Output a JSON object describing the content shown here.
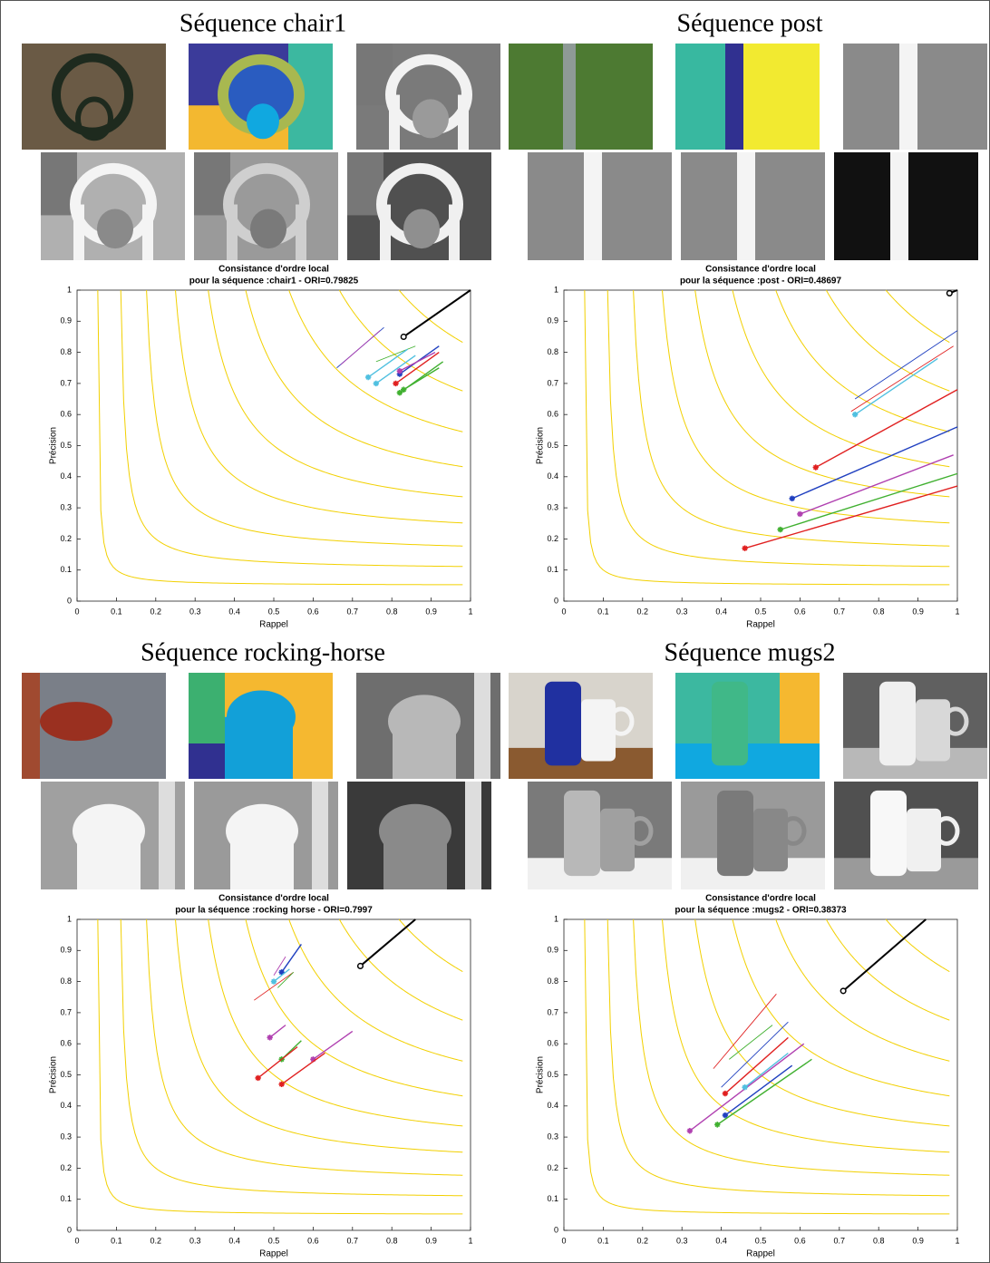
{
  "headings": [
    "Séquence chair1",
    "Séquence post",
    "Séquence rocking-horse",
    "Séquence mugs2"
  ],
  "chart_data": [
    {
      "type": "line",
      "title": "Consistance d'ordre local",
      "subtitle": "pour la séquence :chair1 - ORI=0.79825",
      "xlabel": "Rappel",
      "ylabel": "Précision",
      "xlim": [
        0,
        1
      ],
      "ylim": [
        0,
        1
      ],
      "xticks": [
        0,
        0.1,
        0.2,
        0.3,
        0.4,
        0.5,
        0.6,
        0.7,
        0.8,
        0.9,
        1
      ],
      "yticks": [
        0,
        0.1,
        0.2,
        0.3,
        0.4,
        0.5,
        0.6,
        0.7,
        0.8,
        0.9,
        1
      ],
      "iso_f": [
        0.1,
        0.2,
        0.3,
        0.4,
        0.5,
        0.6,
        0.7,
        0.8,
        0.9
      ],
      "iso_color": "#f2d000",
      "series": [
        {
          "color": "#000000",
          "marker": "o",
          "x": [
            0.83,
            1.0
          ],
          "values": [
            0.85,
            1.0
          ]
        },
        {
          "color": "#2040c0",
          "marker": "none",
          "x": [
            0.66,
            0.78
          ],
          "values": [
            0.75,
            0.88
          ]
        },
        {
          "color": "#b040b0",
          "marker": "none",
          "x": [
            0.67,
            0.77
          ],
          "values": [
            0.76,
            0.87
          ]
        },
        {
          "color": "#40b030",
          "marker": "none",
          "x": [
            0.76,
            0.86
          ],
          "values": [
            0.77,
            0.82
          ]
        },
        {
          "color": "#50c0e0",
          "marker": "*",
          "x": [
            0.74,
            0.84
          ],
          "values": [
            0.72,
            0.81
          ]
        },
        {
          "color": "#50c0e0",
          "marker": "*",
          "x": [
            0.76,
            0.86
          ],
          "values": [
            0.7,
            0.79
          ]
        },
        {
          "color": "#2040c0",
          "marker": "*",
          "x": [
            0.82,
            0.92
          ],
          "values": [
            0.73,
            0.82
          ]
        },
        {
          "color": "#b040b0",
          "marker": "*",
          "x": [
            0.82,
            0.91
          ],
          "values": [
            0.74,
            0.8
          ]
        },
        {
          "color": "#e02020",
          "marker": "*",
          "x": [
            0.81,
            0.92
          ],
          "values": [
            0.7,
            0.8
          ]
        },
        {
          "color": "#40b030",
          "marker": "*",
          "x": [
            0.82,
            0.93
          ],
          "values": [
            0.67,
            0.77
          ]
        },
        {
          "color": "#40b030",
          "marker": "*",
          "x": [
            0.83,
            0.92
          ],
          "values": [
            0.68,
            0.75
          ]
        }
      ]
    },
    {
      "type": "line",
      "title": "Consistance d'ordre local",
      "subtitle": "pour la séquence :post - ORI=0.48697",
      "xlabel": "Rappel",
      "ylabel": "Précision",
      "xlim": [
        0,
        1
      ],
      "ylim": [
        0,
        1
      ],
      "xticks": [
        0,
        0.1,
        0.2,
        0.3,
        0.4,
        0.5,
        0.6,
        0.7,
        0.8,
        0.9,
        1
      ],
      "yticks": [
        0,
        0.1,
        0.2,
        0.3,
        0.4,
        0.5,
        0.6,
        0.7,
        0.8,
        0.9,
        1
      ],
      "iso_f": [
        0.1,
        0.2,
        0.3,
        0.4,
        0.5,
        0.6,
        0.7,
        0.8,
        0.9
      ],
      "iso_color": "#f2d000",
      "series": [
        {
          "color": "#000000",
          "marker": "o",
          "x": [
            0.98,
            1.0
          ],
          "values": [
            0.99,
            1.0
          ]
        },
        {
          "color": "#2040c0",
          "marker": "none",
          "x": [
            0.74,
            1.0
          ],
          "values": [
            0.65,
            0.87
          ]
        },
        {
          "color": "#e02020",
          "marker": "none",
          "x": [
            0.73,
            0.99
          ],
          "values": [
            0.61,
            0.82
          ]
        },
        {
          "color": "#50c0e0",
          "marker": "*",
          "x": [
            0.74,
            0.95
          ],
          "values": [
            0.6,
            0.78
          ]
        },
        {
          "color": "#e02020",
          "marker": "*",
          "x": [
            0.64,
            1.0
          ],
          "values": [
            0.43,
            0.68
          ]
        },
        {
          "color": "#2040c0",
          "marker": "*",
          "x": [
            0.58,
            1.0
          ],
          "values": [
            0.33,
            0.56
          ]
        },
        {
          "color": "#b040b0",
          "marker": "*",
          "x": [
            0.6,
            0.99
          ],
          "values": [
            0.28,
            0.47
          ]
        },
        {
          "color": "#40b030",
          "marker": "*",
          "x": [
            0.55,
            1.0
          ],
          "values": [
            0.23,
            0.41
          ]
        },
        {
          "color": "#e02020",
          "marker": "*",
          "x": [
            0.46,
            1.0
          ],
          "values": [
            0.17,
            0.37
          ]
        }
      ]
    },
    {
      "type": "line",
      "title": "Consistance d'ordre local",
      "subtitle": "pour la séquence :rocking horse - ORI=0.7997",
      "xlabel": "Rappel",
      "ylabel": "Précision",
      "xlim": [
        0,
        1
      ],
      "ylim": [
        0,
        1
      ],
      "xticks": [
        0,
        0.1,
        0.2,
        0.3,
        0.4,
        0.5,
        0.6,
        0.7,
        0.8,
        0.9,
        1
      ],
      "yticks": [
        0,
        0.1,
        0.2,
        0.3,
        0.4,
        0.5,
        0.6,
        0.7,
        0.8,
        0.9,
        1
      ],
      "iso_f": [
        0.1,
        0.2,
        0.3,
        0.4,
        0.5,
        0.6,
        0.7,
        0.8,
        0.9
      ],
      "iso_color": "#f2d000",
      "series": [
        {
          "color": "#000000",
          "marker": "o",
          "x": [
            0.72,
            0.86
          ],
          "values": [
            0.85,
            1.0
          ]
        },
        {
          "color": "#2040c0",
          "marker": "*",
          "x": [
            0.52,
            0.57
          ],
          "values": [
            0.83,
            0.92
          ]
        },
        {
          "color": "#b040b0",
          "marker": "none",
          "x": [
            0.5,
            0.53
          ],
          "values": [
            0.82,
            0.88
          ]
        },
        {
          "color": "#50c0e0",
          "marker": "*",
          "x": [
            0.5,
            0.54
          ],
          "values": [
            0.8,
            0.84
          ]
        },
        {
          "color": "#e02020",
          "marker": "none",
          "x": [
            0.45,
            0.55
          ],
          "values": [
            0.74,
            0.83
          ]
        },
        {
          "color": "#40b030",
          "marker": "none",
          "x": [
            0.51,
            0.55
          ],
          "values": [
            0.78,
            0.83
          ]
        },
        {
          "color": "#b040b0",
          "marker": "*",
          "x": [
            0.49,
            0.53
          ],
          "values": [
            0.62,
            0.66
          ]
        },
        {
          "color": "#40b030",
          "marker": "*",
          "x": [
            0.52,
            0.57
          ],
          "values": [
            0.55,
            0.61
          ]
        },
        {
          "color": "#e02020",
          "marker": "*",
          "x": [
            0.46,
            0.56
          ],
          "values": [
            0.49,
            0.59
          ]
        },
        {
          "color": "#b040b0",
          "marker": "*",
          "x": [
            0.6,
            0.7
          ],
          "values": [
            0.55,
            0.64
          ]
        },
        {
          "color": "#e02020",
          "marker": "*",
          "x": [
            0.52,
            0.63
          ],
          "values": [
            0.47,
            0.57
          ]
        }
      ]
    },
    {
      "type": "line",
      "title": "Consistance d'ordre local",
      "subtitle": "pour la séquence :mugs2 - ORI=0.38373",
      "xlabel": "Rappel",
      "ylabel": "Précision",
      "xlim": [
        0,
        1
      ],
      "ylim": [
        0,
        1
      ],
      "xticks": [
        0,
        0.1,
        0.2,
        0.3,
        0.4,
        0.5,
        0.6,
        0.7,
        0.8,
        0.9,
        1
      ],
      "yticks": [
        0,
        0.1,
        0.2,
        0.3,
        0.4,
        0.5,
        0.6,
        0.7,
        0.8,
        0.9,
        1
      ],
      "iso_f": [
        0.1,
        0.2,
        0.3,
        0.4,
        0.5,
        0.6,
        0.7,
        0.8,
        0.9
      ],
      "iso_color": "#f2d000",
      "series": [
        {
          "color": "#000000",
          "marker": "o",
          "x": [
            0.71,
            0.92
          ],
          "values": [
            0.77,
            1.0
          ]
        },
        {
          "color": "#e02020",
          "marker": "none",
          "x": [
            0.38,
            0.54
          ],
          "values": [
            0.52,
            0.76
          ]
        },
        {
          "color": "#40b030",
          "marker": "none",
          "x": [
            0.42,
            0.53
          ],
          "values": [
            0.55,
            0.66
          ]
        },
        {
          "color": "#2040c0",
          "marker": "none",
          "x": [
            0.4,
            0.57
          ],
          "values": [
            0.46,
            0.67
          ]
        },
        {
          "color": "#e02020",
          "marker": "*",
          "x": [
            0.41,
            0.57
          ],
          "values": [
            0.44,
            0.62
          ]
        },
        {
          "color": "#b040b0",
          "marker": "*",
          "x": [
            0.32,
            0.61
          ],
          "values": [
            0.32,
            0.6
          ]
        },
        {
          "color": "#50c0e0",
          "marker": "*",
          "x": [
            0.46,
            0.57
          ],
          "values": [
            0.46,
            0.57
          ]
        },
        {
          "color": "#2040c0",
          "marker": "*",
          "x": [
            0.41,
            0.58
          ],
          "values": [
            0.37,
            0.53
          ]
        },
        {
          "color": "#40b030",
          "marker": "*",
          "x": [
            0.39,
            0.63
          ],
          "values": [
            0.34,
            0.55
          ]
        }
      ]
    }
  ]
}
